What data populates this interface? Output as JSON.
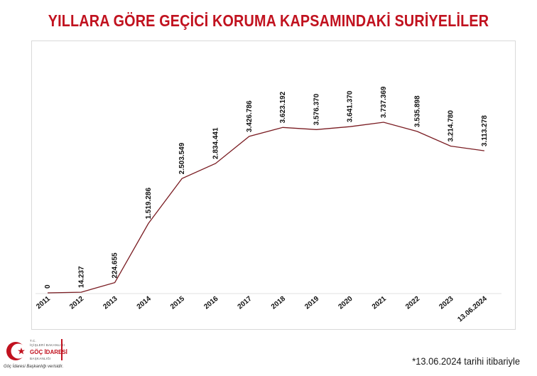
{
  "header": {
    "title": "YILLARA GÖRE GEÇİCİ KORUMA KAPSAMINDAKİ SURİYELİLER"
  },
  "footnote": "*13.06.2024 tarihi itibariyle",
  "logo": {
    "line1": "T.C.",
    "line2": "İÇİŞLERİ BAKANLIĞI",
    "line3": "GÖÇ İDARESİ",
    "line4": "BAŞKANLIĞI",
    "credit": "Göç İdaresi Başkanlığı verisidir.",
    "icon": "crescent-star-icon"
  },
  "colors": {
    "title": "#c1121f",
    "line": "#7a1c22"
  },
  "chart_data": {
    "type": "line",
    "title": "YILLARA GÖRE GEÇİCİ KORUMA KAPSAMINDAKİ SURİYELİLER",
    "xlabel": "",
    "ylabel": "",
    "categories": [
      "2011",
      "2012",
      "2013",
      "2014",
      "2015",
      "2016",
      "2017",
      "2018",
      "2019",
      "2020",
      "2021",
      "2022",
      "2023",
      "13.06.2024"
    ],
    "values": [
      0,
      14237,
      224655,
      1519286,
      2503549,
      2834441,
      3426786,
      3623192,
      3576370,
      3641370,
      3737369,
      3535898,
      3214780,
      3113278
    ],
    "labels": [
      "0",
      "14.237",
      "224.655",
      "1.519.286",
      "2.503.549",
      "2.834.441",
      "3.426.786",
      "3.623.192",
      "3.576.370",
      "3.641.370",
      "3.737.369",
      "3.535.898",
      "3.214.780",
      "3.113.278"
    ],
    "ylim": [
      0,
      4000000
    ],
    "grid": false,
    "legend": "none"
  }
}
